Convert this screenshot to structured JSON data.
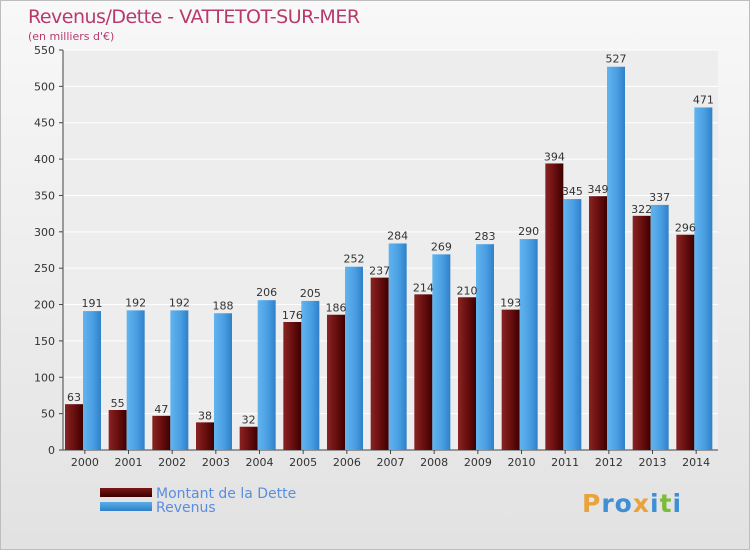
{
  "title": "Revenus/Dette - VATTETOT-SUR-MER",
  "subtitle": "(en milliers d'€)",
  "logo": "Proxiti",
  "colors": {
    "title": "#b83a6d",
    "dette": "#7a1a1a",
    "revenus": "#4da3e6",
    "legend_text": "#5a8de0"
  },
  "chart_data": {
    "type": "bar",
    "categories": [
      "2000",
      "2001",
      "2002",
      "2003",
      "2004",
      "2005",
      "2006",
      "2007",
      "2008",
      "2009",
      "2010",
      "2011",
      "2012",
      "2013",
      "2014"
    ],
    "series": [
      {
        "name": "Montant de la Dette",
        "values": [
          63,
          55,
          47,
          38,
          32,
          176,
          186,
          237,
          214,
          210,
          193,
          394,
          349,
          322,
          296
        ]
      },
      {
        "name": "Revenus",
        "values": [
          191,
          192,
          192,
          188,
          206,
          205,
          252,
          284,
          269,
          283,
          290,
          345,
          527,
          337,
          471
        ]
      }
    ],
    "ylim": [
      0,
      550
    ],
    "yticks": [
      0,
      50,
      100,
      150,
      200,
      250,
      300,
      350,
      400,
      450,
      500,
      550
    ],
    "grid": true,
    "legend_position": "bottom-left"
  }
}
